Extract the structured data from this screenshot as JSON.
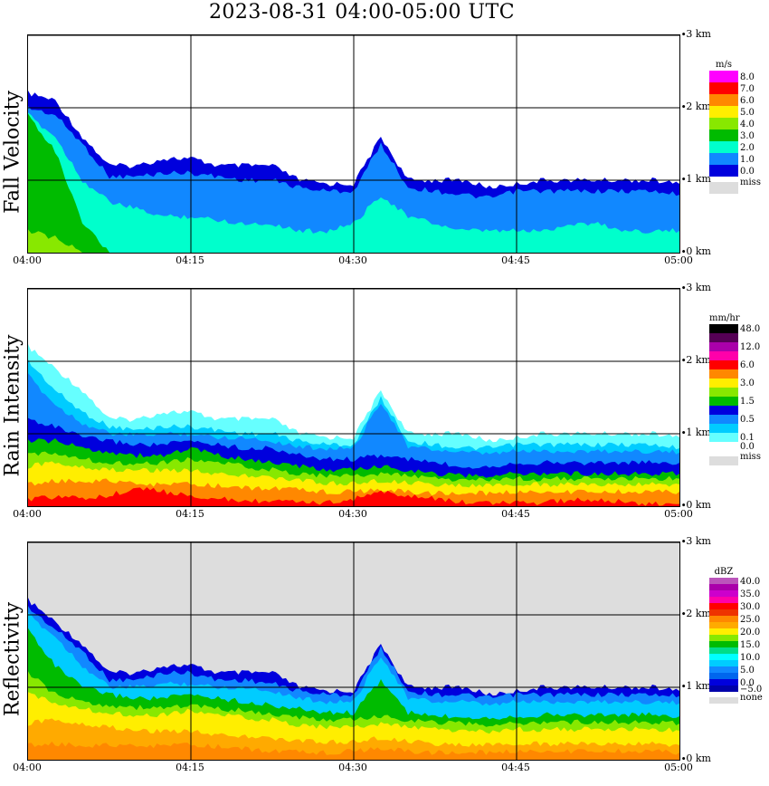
{
  "title": "2023-08-31   04:00-05:00 UTC",
  "chart_data": [
    {
      "type": "heatmap",
      "title": "Fall Velocity",
      "x_ticks": [
        "04:00",
        "04:15",
        "04:30",
        "04:45",
        "05:00"
      ],
      "y_ticks": [
        "0 km",
        "1 km",
        "2 km",
        "3 km"
      ],
      "ylim": [
        0,
        3
      ],
      "units": "m/s",
      "colorbar": [
        {
          "label": "8.0",
          "color": "#ff00ff"
        },
        {
          "label": "7.0",
          "color": "#ff0000"
        },
        {
          "label": "6.0",
          "color": "#ff8800"
        },
        {
          "label": "5.0",
          "color": "#ffee00"
        },
        {
          "label": "4.0",
          "color": "#88e800"
        },
        {
          "label": "3.0",
          "color": "#00bb00"
        },
        {
          "label": "2.0",
          "color": "#00ffcc"
        },
        {
          "label": "1.0",
          "color": "#1188ff"
        },
        {
          "label": "0.0",
          "color": "#0000dd"
        },
        {
          "label": "miss",
          "color": "#dddddd"
        }
      ],
      "background": "#ffffff",
      "cloud_top_km": [
        2.2,
        2.1,
        1.6,
        1.2,
        1.2,
        1.3,
        1.3,
        1.2,
        1.2,
        1.2,
        1.0,
        0.95,
        0.95,
        1.6,
        1.0,
        1.0,
        1.0,
        0.9,
        0.95,
        1.0,
        1.0,
        1.0,
        1.0,
        1.0,
        0.95
      ],
      "layers": [
        {
          "color": "#0000dd",
          "tops_km": [
            2.2,
            2.1,
            1.6,
            1.2,
            1.2,
            1.3,
            1.3,
            1.2,
            1.2,
            1.2,
            1.0,
            0.95,
            0.95,
            1.6,
            1.0,
            1.0,
            1.0,
            0.9,
            0.95,
            1.0,
            1.0,
            1.0,
            1.0,
            1.0,
            0.95
          ]
        },
        {
          "color": "#1188ff",
          "tops_km": [
            2.0,
            1.9,
            1.5,
            1.05,
            1.05,
            1.1,
            1.1,
            1.05,
            1.0,
            1.0,
            0.9,
            0.85,
            0.85,
            1.5,
            0.9,
            0.85,
            0.8,
            0.75,
            0.85,
            0.85,
            0.85,
            0.85,
            0.85,
            0.85,
            0.8
          ]
        },
        {
          "color": "#00ffcc",
          "tops_km": [
            1.9,
            1.6,
            1.0,
            0.7,
            0.6,
            0.5,
            0.5,
            0.45,
            0.4,
            0.4,
            0.3,
            0.3,
            0.4,
            0.8,
            0.5,
            0.4,
            0.3,
            0.3,
            0.3,
            0.3,
            0.4,
            0.4,
            0.3,
            0.3,
            0.3
          ]
        },
        {
          "color": "#00bb00",
          "tops_km": [
            1.9,
            1.4,
            0.4,
            0,
            0,
            0,
            0,
            0,
            0,
            0,
            0,
            0,
            0,
            0,
            0,
            0,
            0,
            0,
            0,
            0,
            0,
            0,
            0,
            0,
            0
          ]
        },
        {
          "color": "#88e800",
          "tops_km": [
            0.3,
            0.2,
            0,
            0,
            0,
            0,
            0,
            0,
            0,
            0,
            0,
            0,
            0,
            0,
            0,
            0,
            0,
            0,
            0,
            0,
            0,
            0,
            0,
            0,
            0
          ]
        }
      ]
    },
    {
      "type": "heatmap",
      "title": "Rain Intensity",
      "x_ticks": [
        "04:00",
        "04:15",
        "04:30",
        "04:45",
        "05:00"
      ],
      "y_ticks": [
        "0 km",
        "1 km",
        "2 km",
        "3 km"
      ],
      "ylim": [
        0,
        3
      ],
      "units": "mm/hr",
      "colorbar": [
        {
          "label": "48.0",
          "color": "#000000"
        },
        {
          "label": "",
          "color": "#550055"
        },
        {
          "label": "12.0",
          "color": "#aa00aa"
        },
        {
          "label": "",
          "color": "#ff00aa"
        },
        {
          "label": "6.0",
          "color": "#ff0000"
        },
        {
          "label": "",
          "color": "#ff8800"
        },
        {
          "label": "3.0",
          "color": "#ffee00"
        },
        {
          "label": "",
          "color": "#88e800"
        },
        {
          "label": "1.5",
          "color": "#00bb00"
        },
        {
          "label": "",
          "color": "#0000dd"
        },
        {
          "label": "0.5",
          "color": "#1188ff"
        },
        {
          "label": "",
          "color": "#00ccff"
        },
        {
          "label": "0.1",
          "color": "#66ffff"
        },
        {
          "label": "0.0",
          "color": "#ffffff"
        },
        {
          "label": "miss",
          "color": "#dddddd"
        }
      ],
      "background": "#ffffff",
      "layers": [
        {
          "color": "#66ffff",
          "tops_km": [
            2.2,
            1.9,
            1.6,
            1.2,
            1.2,
            1.3,
            1.3,
            1.2,
            1.2,
            1.2,
            1.0,
            0.95,
            0.95,
            1.6,
            1.0,
            1.0,
            1.0,
            0.9,
            0.95,
            1.0,
            1.0,
            1.0,
            1.0,
            1.0,
            0.95
          ]
        },
        {
          "color": "#00ccff",
          "tops_km": [
            2.0,
            1.6,
            1.3,
            1.1,
            1.05,
            1.1,
            1.1,
            1.05,
            1.0,
            1.0,
            0.9,
            0.85,
            0.85,
            1.5,
            0.9,
            0.85,
            0.8,
            0.8,
            0.85,
            0.85,
            0.85,
            0.85,
            0.85,
            0.85,
            0.8
          ]
        },
        {
          "color": "#1188ff",
          "tops_km": [
            1.8,
            1.4,
            1.15,
            1.0,
            0.98,
            1.0,
            1.0,
            0.95,
            0.95,
            0.9,
            0.82,
            0.8,
            0.8,
            1.45,
            0.82,
            0.78,
            0.74,
            0.72,
            0.76,
            0.76,
            0.76,
            0.76,
            0.76,
            0.76,
            0.74
          ]
        },
        {
          "color": "#0000dd",
          "tops_km": [
            1.2,
            1.1,
            0.95,
            0.9,
            0.85,
            0.85,
            0.9,
            0.85,
            0.8,
            0.8,
            0.7,
            0.65,
            0.65,
            0.7,
            0.65,
            0.6,
            0.55,
            0.55,
            0.6,
            0.6,
            0.6,
            0.6,
            0.6,
            0.6,
            0.6
          ]
        },
        {
          "color": "#00bb00",
          "tops_km": [
            0.9,
            0.9,
            0.8,
            0.75,
            0.7,
            0.7,
            0.8,
            0.7,
            0.65,
            0.6,
            0.55,
            0.5,
            0.5,
            0.55,
            0.5,
            0.45,
            0.42,
            0.42,
            0.45,
            0.45,
            0.45,
            0.45,
            0.45,
            0.45,
            0.45
          ]
        },
        {
          "color": "#88e800",
          "tops_km": [
            0.7,
            0.75,
            0.65,
            0.6,
            0.6,
            0.6,
            0.65,
            0.6,
            0.55,
            0.5,
            0.45,
            0.42,
            0.42,
            0.45,
            0.42,
            0.38,
            0.36,
            0.36,
            0.38,
            0.38,
            0.38,
            0.38,
            0.38,
            0.38,
            0.38
          ]
        },
        {
          "color": "#ffee00",
          "tops_km": [
            0.55,
            0.6,
            0.55,
            0.5,
            0.5,
            0.5,
            0.5,
            0.45,
            0.42,
            0.4,
            0.35,
            0.32,
            0.32,
            0.35,
            0.32,
            0.3,
            0.28,
            0.28,
            0.3,
            0.3,
            0.3,
            0.3,
            0.3,
            0.3,
            0.3
          ]
        },
        {
          "color": "#ff8800",
          "tops_km": [
            0.3,
            0.35,
            0.35,
            0.35,
            0.3,
            0.3,
            0.3,
            0.28,
            0.25,
            0.25,
            0.22,
            0.2,
            0.2,
            0.22,
            0.2,
            0.18,
            0.18,
            0.18,
            0.2,
            0.2,
            0.2,
            0.2,
            0.2,
            0.2,
            0.2
          ]
        },
        {
          "color": "#ff0000",
          "tops_km": [
            0.1,
            0.12,
            0.12,
            0.15,
            0.25,
            0.2,
            0.15,
            0.1,
            0.08,
            0.06,
            0.05,
            0.05,
            0.1,
            0.2,
            0.15,
            0.1,
            0.06,
            0.05,
            0.05,
            0.05,
            0.08,
            0.1,
            0.05,
            0.03,
            0.03
          ]
        }
      ]
    },
    {
      "type": "heatmap",
      "title": "Reflectivity",
      "x_ticks": [
        "04:00",
        "04:15",
        "04:30",
        "04:45",
        "05:00"
      ],
      "y_ticks": [
        "0 km",
        "1 km",
        "2 km",
        "3 km"
      ],
      "ylim": [
        0,
        3
      ],
      "units": "dBZ",
      "colorbar": [
        {
          "label": "40.0",
          "color": "#bb55bb"
        },
        {
          "label": "",
          "color": "#aa00aa"
        },
        {
          "label": "35.0",
          "color": "#cc00cc"
        },
        {
          "label": "",
          "color": "#ff00aa"
        },
        {
          "label": "30.0",
          "color": "#ff0000"
        },
        {
          "label": "",
          "color": "#ee3300"
        },
        {
          "label": "25.0",
          "color": "#ff8800"
        },
        {
          "label": "",
          "color": "#ffaa00"
        },
        {
          "label": "20.0",
          "color": "#ffee00"
        },
        {
          "label": "",
          "color": "#88e800"
        },
        {
          "label": "15.0",
          "color": "#00bb00"
        },
        {
          "label": "",
          "color": "#00dd88"
        },
        {
          "label": "10.0",
          "color": "#00ffff"
        },
        {
          "label": "",
          "color": "#00ccff"
        },
        {
          "label": "5.0",
          "color": "#1188ff"
        },
        {
          "label": "",
          "color": "#0066ee"
        },
        {
          "label": "0.0",
          "color": "#0000dd"
        },
        {
          "label": "−5.0",
          "color": "#0000aa"
        },
        {
          "label": "none",
          "color": "#dddddd"
        }
      ],
      "background": "#dddddd",
      "layers": [
        {
          "color": "#0000dd",
          "tops_km": [
            2.2,
            1.9,
            1.6,
            1.2,
            1.2,
            1.3,
            1.3,
            1.2,
            1.2,
            1.2,
            1.0,
            0.95,
            0.95,
            1.6,
            1.0,
            1.0,
            1.0,
            0.9,
            0.95,
            1.0,
            1.0,
            1.0,
            1.0,
            1.0,
            0.95
          ]
        },
        {
          "color": "#1188ff",
          "tops_km": [
            2.1,
            1.8,
            1.5,
            1.1,
            1.1,
            1.2,
            1.2,
            1.1,
            1.1,
            1.05,
            0.95,
            0.9,
            0.9,
            1.55,
            0.95,
            0.9,
            0.9,
            0.85,
            0.9,
            0.9,
            0.9,
            0.9,
            0.9,
            0.9,
            0.88
          ]
        },
        {
          "color": "#00ccff",
          "tops_km": [
            2.0,
            1.7,
            1.3,
            1.0,
            1.0,
            1.05,
            1.05,
            1.0,
            1.0,
            0.95,
            0.85,
            0.8,
            0.8,
            1.45,
            0.85,
            0.8,
            0.8,
            0.75,
            0.8,
            0.8,
            0.8,
            0.8,
            0.8,
            0.8,
            0.78
          ]
        },
        {
          "color": "#00bb00",
          "tops_km": [
            1.8,
            1.3,
            1.0,
            0.9,
            0.85,
            0.85,
            0.9,
            0.85,
            0.8,
            0.75,
            0.7,
            0.65,
            0.65,
            1.1,
            0.65,
            0.6,
            0.6,
            0.58,
            0.6,
            0.62,
            0.62,
            0.62,
            0.62,
            0.62,
            0.6
          ]
        },
        {
          "color": "#88e800",
          "tops_km": [
            1.2,
            0.9,
            0.8,
            0.75,
            0.72,
            0.72,
            0.75,
            0.7,
            0.68,
            0.62,
            0.58,
            0.55,
            0.55,
            0.6,
            0.55,
            0.52,
            0.5,
            0.48,
            0.5,
            0.52,
            0.52,
            0.52,
            0.52,
            0.52,
            0.5
          ]
        },
        {
          "color": "#ffee00",
          "tops_km": [
            0.9,
            0.8,
            0.7,
            0.65,
            0.62,
            0.62,
            0.68,
            0.62,
            0.58,
            0.55,
            0.48,
            0.45,
            0.45,
            0.5,
            0.45,
            0.42,
            0.4,
            0.38,
            0.42,
            0.42,
            0.42,
            0.42,
            0.42,
            0.42,
            0.4
          ]
        },
        {
          "color": "#ffaa00",
          "tops_km": [
            0.5,
            0.55,
            0.5,
            0.45,
            0.4,
            0.4,
            0.4,
            0.35,
            0.32,
            0.3,
            0.25,
            0.25,
            0.25,
            0.3,
            0.25,
            0.22,
            0.2,
            0.2,
            0.22,
            0.22,
            0.22,
            0.22,
            0.22,
            0.22,
            0.2
          ]
        },
        {
          "color": "#ff8800",
          "tops_km": [
            0.2,
            0.22,
            0.2,
            0.2,
            0.18,
            0.2,
            0.2,
            0.18,
            0.15,
            0.12,
            0.1,
            0.1,
            0.12,
            0.15,
            0.12,
            0.1,
            0.1,
            0.1,
            0.12,
            0.12,
            0.12,
            0.12,
            0.12,
            0.12,
            0.1
          ]
        }
      ]
    }
  ]
}
